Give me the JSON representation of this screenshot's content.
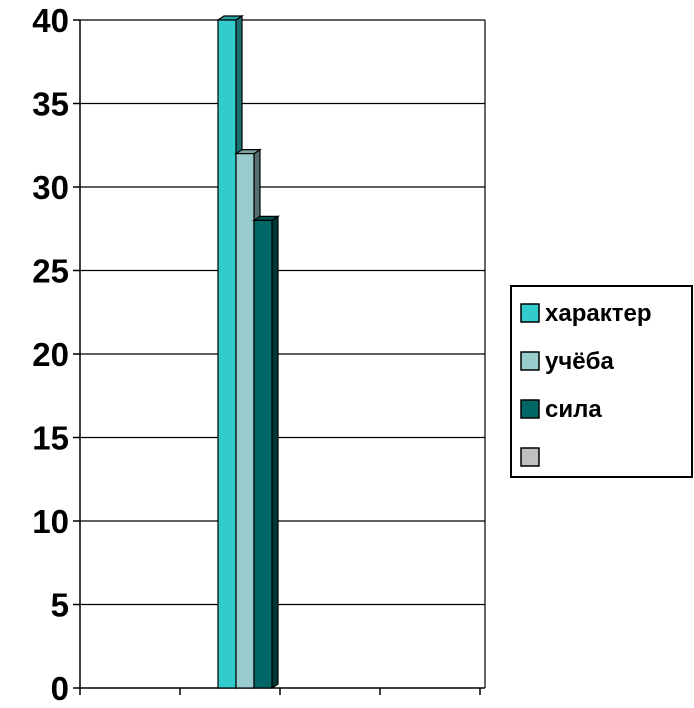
{
  "chart_data": {
    "type": "bar",
    "style": "3d-clustered-columns",
    "categories": [
      "",
      "",
      "",
      ""
    ],
    "series": [
      {
        "name": "характер",
        "values": [
          null,
          40,
          null,
          null
        ],
        "color": "#33cccc"
      },
      {
        "name": "учёба",
        "values": [
          null,
          32,
          null,
          null
        ],
        "color": "#99cccc"
      },
      {
        "name": "сила",
        "values": [
          null,
          28,
          null,
          null
        ],
        "color": "#006666"
      },
      {
        "name": "",
        "values": [
          null,
          null,
          null,
          null
        ],
        "color": "#c0c0c0"
      }
    ],
    "title": "",
    "xlabel": "",
    "ylabel": "",
    "ylim": [
      0,
      40
    ],
    "yticks": [
      "0",
      "5",
      "10",
      "15",
      "20",
      "25",
      "30",
      "35",
      "40"
    ],
    "grid": true,
    "legend_position": "right"
  }
}
